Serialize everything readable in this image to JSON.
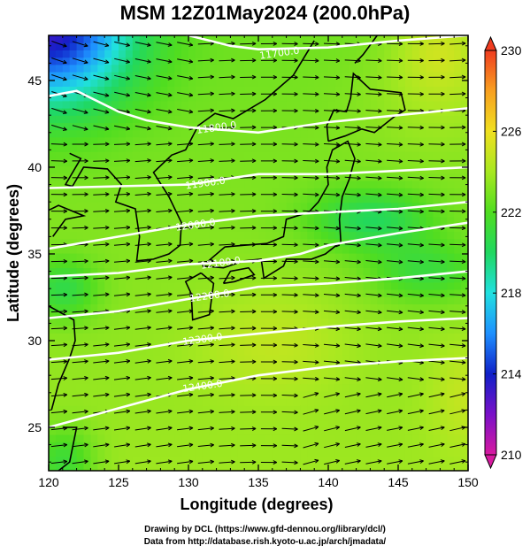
{
  "chart_data": {
    "type": "heatmap",
    "title": "MSM 12Z01May2024 (200.0hPa)",
    "xlabel": "Longitude (degrees)",
    "ylabel": "Latitude  (degrees)",
    "xlim": [
      120,
      150
    ],
    "ylim": [
      22.5,
      47.6
    ],
    "xticks": [
      120,
      125,
      130,
      135,
      140,
      145,
      150
    ],
    "yticks": [
      25,
      30,
      35,
      40,
      45
    ],
    "colorbar": {
      "min": 210,
      "max": 230,
      "ticks": [
        210,
        214,
        218,
        222,
        226,
        230
      ],
      "colors": [
        "#d81aa0",
        "#7a10c8",
        "#1020c8",
        "#1e90ff",
        "#20e0e0",
        "#20d860",
        "#50dd20",
        "#a8e820",
        "#f0e020",
        "#f8a020",
        "#f03c20"
      ]
    },
    "contours": [
      {
        "label": "11700.0",
        "points": [
          [
            120,
            48.3
          ],
          [
            125,
            48.6
          ],
          [
            130,
            47.6
          ],
          [
            133,
            47.0
          ],
          [
            135,
            46.8
          ],
          [
            140,
            46.9
          ],
          [
            145,
            47.3
          ],
          [
            150,
            47.6
          ]
        ]
      },
      {
        "label": "11800.0",
        "points": [
          [
            120,
            44.1
          ],
          [
            122,
            44.4
          ],
          [
            125,
            43.2
          ],
          [
            127,
            42.7
          ],
          [
            130,
            42.3
          ],
          [
            135,
            42.0
          ],
          [
            140,
            42.6
          ],
          [
            145,
            43.0
          ],
          [
            150,
            43.4
          ]
        ]
      },
      {
        "label": "11900.0",
        "points": [
          [
            120,
            38.8
          ],
          [
            125,
            38.9
          ],
          [
            130,
            39.0
          ],
          [
            135,
            39.6
          ],
          [
            140,
            39.6
          ],
          [
            145,
            39.8
          ],
          [
            150,
            40.0
          ]
        ]
      },
      {
        "label": "12000.0",
        "points": [
          [
            120,
            35.3
          ],
          [
            125,
            36.0
          ],
          [
            130,
            36.7
          ],
          [
            135,
            37.2
          ],
          [
            140,
            37.4
          ],
          [
            145,
            37.6
          ],
          [
            150,
            38.0
          ]
        ]
      },
      {
        "label": "12100.0",
        "points": [
          [
            120,
            33.7
          ],
          [
            125,
            33.9
          ],
          [
            130,
            34.4
          ],
          [
            135,
            34.6
          ],
          [
            138,
            35.0
          ],
          [
            140,
            35.5
          ],
          [
            145,
            36.2
          ],
          [
            150,
            36.8
          ]
        ]
      },
      {
        "label": "12200.0",
        "points": [
          [
            120,
            31.3
          ],
          [
            125,
            31.7
          ],
          [
            130,
            32.4
          ],
          [
            135,
            33.1
          ],
          [
            140,
            33.3
          ],
          [
            145,
            33.6
          ],
          [
            150,
            34.0
          ]
        ]
      },
      {
        "label": "12300.0",
        "points": [
          [
            120,
            28.9
          ],
          [
            125,
            29.3
          ],
          [
            130,
            30.0
          ],
          [
            135,
            30.4
          ],
          [
            140,
            30.8
          ],
          [
            145,
            31.1
          ],
          [
            150,
            31.3
          ]
        ]
      },
      {
        "label": "12400.0",
        "points": [
          [
            120,
            25.0
          ],
          [
            125,
            26.1
          ],
          [
            130,
            27.2
          ],
          [
            135,
            28.0
          ],
          [
            140,
            28.5
          ],
          [
            145,
            28.8
          ],
          [
            150,
            29.0
          ]
        ]
      }
    ],
    "grid": false,
    "vectors": "wind flow arrows, predominantly westerly to west-southwesterly"
  },
  "credits": {
    "line1": "Drawing by DCL (https://www.gfd-dennou.org/library/dcl/)",
    "line2": "Data from http://database.rish.kyoto-u.ac.jp/arch/jmadata/"
  }
}
